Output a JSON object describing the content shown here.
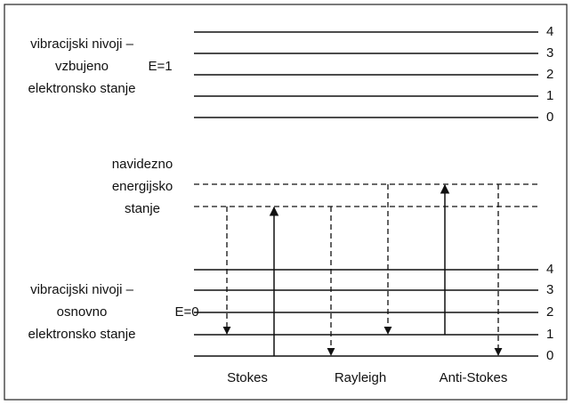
{
  "upper": {
    "label_lines": [
      "vibracijski nivoji –",
      "vzbujeno",
      "elektronsko stanje"
    ],
    "energy": "E=1",
    "levels": [
      "4",
      "3",
      "2",
      "1",
      "0"
    ]
  },
  "virtual": {
    "label_lines": [
      "navidezno",
      "energijsko",
      "stanje"
    ]
  },
  "lower": {
    "label_lines": [
      "vibracijski nivoji –",
      "osnovno",
      "elektronsko stanje"
    ],
    "energy": "E=0",
    "levels": [
      "4",
      "3",
      "2",
      "1",
      "0"
    ]
  },
  "processes": [
    "Stokes",
    "Rayleigh",
    "Anti-Stokes"
  ]
}
